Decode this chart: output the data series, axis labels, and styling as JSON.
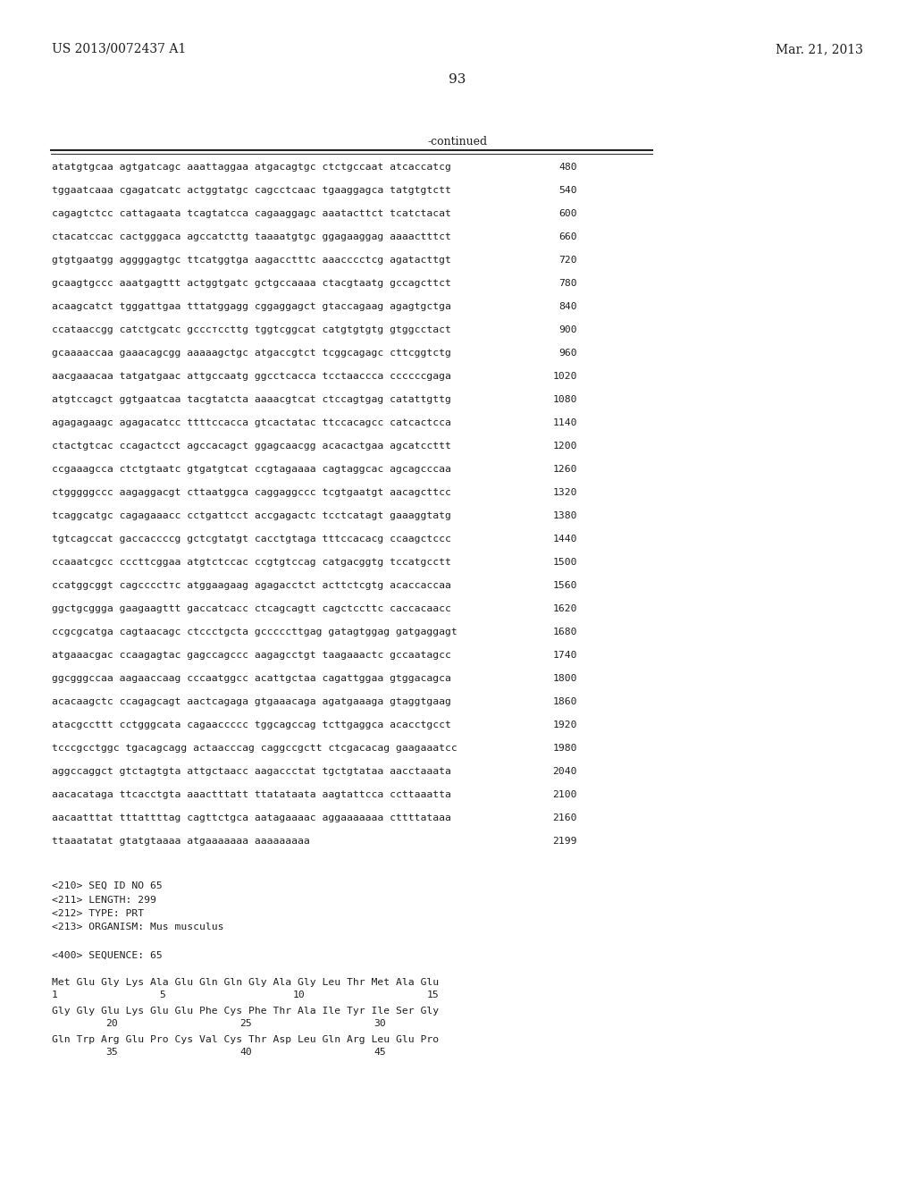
{
  "header_left": "US 2013/0072437 A1",
  "header_right": "Mar. 21, 2013",
  "page_number": "93",
  "continued_label": "-continued",
  "background_color": "#ffffff",
  "text_color": "#231f20",
  "sequence_lines": [
    [
      "atatgtgcaa agtgatcagc aaattaggaa atgacagtgc ctctgccaat atcaccatcg",
      "480"
    ],
    [
      "tggaatcaaa cgagatcatc actggtatgc cagcctcaac tgaaggagca tatgtgtctt",
      "540"
    ],
    [
      "cagagtctcc cattagaata tcagtatcca cagaaggagc aaatacttct tcatctacat",
      "600"
    ],
    [
      "ctacatccac cactgggaca agccatcttg taaaatgtgc ggagaaggag aaaactttct",
      "660"
    ],
    [
      "gtgtgaatgg aggggagtgc ttcatggtga aagacctttc aaacccctcg agatacttgt",
      "720"
    ],
    [
      "gcaagtgccc aaatgagttt actggtgatc gctgccaaaa ctacgtaatg gccagcttct",
      "780"
    ],
    [
      "acaagcatct tgggattgaa tttatggagg cggaggagct gtaccagaag agagtgctga",
      "840"
    ],
    [
      "ccataaccgg catctgcatc gcccтccttg tggtcggcat catgtgtgtg gtggcctact",
      "900"
    ],
    [
      "gcaaaaccaa gaaacagcgg aaaaagctgc atgaccgtct tcggcagagc cttcggtctg",
      "960"
    ],
    [
      "aacgaaacaa tatgatgaac attgccaatg ggcctcacca tcctaaccca ccccccgaga",
      "1020"
    ],
    [
      "atgtccagct ggtgaatcaa tacgtatcta aaaacgtcat ctccagtgag catattgttg",
      "1080"
    ],
    [
      "agagagaagc agagacatcc ttttccacca gtcactatac ttccacagcc catcactcca",
      "1140"
    ],
    [
      "ctactgtcac ccagactcct agccacagct ggagcaacgg acacactgaa agcatccttt",
      "1200"
    ],
    [
      "ccgaaagcca ctctgtaatc gtgatgtcat ccgtagaaaa cagtaggcac agcagcccaa",
      "1260"
    ],
    [
      "ctgggggccc aagaggacgt cttaatggca caggaggccc tcgtgaatgt aacagcttcc",
      "1320"
    ],
    [
      "tcaggcatgc cagagaaacc cctgattcct accgagactc tcctcatagt gaaaggtatg",
      "1380"
    ],
    [
      "tgtcagccat gaccaccccg gctcgtatgt cacctgtaga tttccacacg ccaagctccc",
      "1440"
    ],
    [
      "ccaaatcgcc cccttcggaa atgtctccac ccgtgtccag catgacggtg tccatgcctt",
      "1500"
    ],
    [
      "ccatggcggt cagcccctтс atggaagaag agagacctct acttctcgtg acaccaccaa",
      "1560"
    ],
    [
      "ggctgcggga gaagaagttt gaccatcacc ctcagcagtt cagctccttc caccacaacc",
      "1620"
    ],
    [
      "ccgcgcatga cagtaacagc ctccctgcta gcccccttgag gatagtggag gatgaggagt",
      "1680"
    ],
    [
      "atgaaacgac ccaagagtac gagccagccc aagagcctgt taagaaactc gccaatagcc",
      "1740"
    ],
    [
      "ggcgggccaa aagaaccaag cccaatggcc acattgctaa cagattggaa gtggacagca",
      "1800"
    ],
    [
      "acacaagctc ccagagcagt aactcagaga gtgaaacaga agatgaaaga gtaggtgaag",
      "1860"
    ],
    [
      "atacgccttt cctgggcata cagaaccccc tggcagccag tcttgaggca acacctgcct",
      "1920"
    ],
    [
      "tcccgcctggc tgacagcagg actaacccag caggccgctt ctcgacacag gaagaaatcc",
      "1980"
    ],
    [
      "aggccaggct gtctagtgta attgctaacc aagaccctat tgctgtataa aacctaaata",
      "2040"
    ],
    [
      "aacacataga ttcacctgta aaactttatt ttatataata aagtattcca ccttaaatta",
      "2100"
    ],
    [
      "aacaatttat tttattttag cagttctgca aatagaaaac aggaaaaaaa cttttataaа",
      "2160"
    ],
    [
      "ttaaatatat gtatgtaaaa atgaaaaaaa aaaaaaaaa",
      "2199"
    ]
  ],
  "seq_info_lines": [
    "<210> SEQ ID NO 65",
    "<211> LENGTH: 299",
    "<212> TYPE: PRT",
    "<213> ORGANISM: Mus musculus"
  ],
  "seq_label": "<400> SEQUENCE: 65",
  "protein_lines": [
    "Met Glu Gly Lys Ala Glu Gln Gln Gly Ala Gly Leu Thr Met Ala Glu",
    "Gly Gly Glu Lys Glu Glu Phe Cys Phe Thr Ala Ile Tyr Ile Ser Gly",
    "Gln Trp Arg Glu Pro Cys Val Cys Thr Asp Leu Gln Arg Leu Glu Pro"
  ],
  "protein_nums": [
    [
      [
        "1",
        "62"
      ],
      [
        "5",
        "152"
      ],
      [
        "10",
        "272"
      ],
      [
        "15",
        "422"
      ]
    ],
    [
      [
        "20",
        "122"
      ],
      [
        "25",
        "272"
      ],
      [
        "30",
        "422"
      ]
    ],
    [
      [
        "35",
        "122"
      ],
      [
        "40",
        "272"
      ],
      [
        "45",
        "422"
      ]
    ]
  ]
}
